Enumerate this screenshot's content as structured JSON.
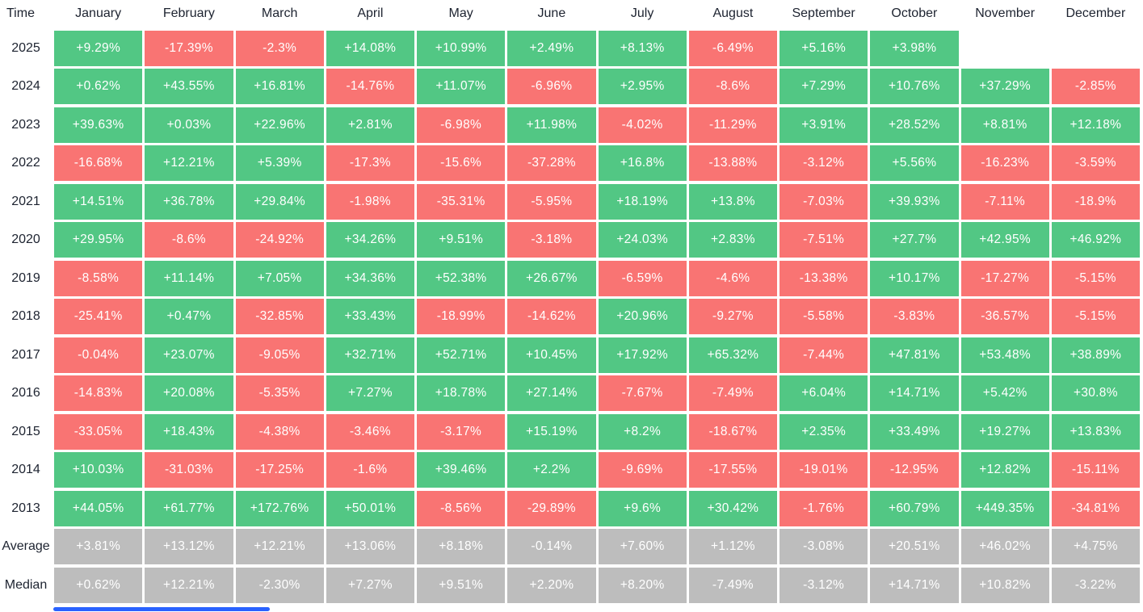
{
  "colors": {
    "positive": "#52c784",
    "negative": "#f97473",
    "summary": "#bdbdbd",
    "cell_text": "#ffffff",
    "label_text": "#1d2330",
    "scrollbar": "#2962ff"
  },
  "chart_data": {
    "type": "heatmap",
    "title": "Monthly performance seasonality table",
    "corner_label": "Time",
    "columns": [
      "January",
      "February",
      "March",
      "April",
      "May",
      "June",
      "July",
      "August",
      "September",
      "October",
      "November",
      "December"
    ],
    "rows": [
      {
        "label": "2025",
        "kind": "year",
        "values": [
          "+9.29%",
          "-17.39%",
          "-2.3%",
          "+14.08%",
          "+10.99%",
          "+2.49%",
          "+8.13%",
          "-6.49%",
          "+5.16%",
          "+3.98%",
          "",
          ""
        ]
      },
      {
        "label": "2024",
        "kind": "year",
        "values": [
          "+0.62%",
          "+43.55%",
          "+16.81%",
          "-14.76%",
          "+11.07%",
          "-6.96%",
          "+2.95%",
          "-8.6%",
          "+7.29%",
          "+10.76%",
          "+37.29%",
          "-2.85%"
        ]
      },
      {
        "label": "2023",
        "kind": "year",
        "values": [
          "+39.63%",
          "+0.03%",
          "+22.96%",
          "+2.81%",
          "-6.98%",
          "+11.98%",
          "-4.02%",
          "-11.29%",
          "+3.91%",
          "+28.52%",
          "+8.81%",
          "+12.18%"
        ]
      },
      {
        "label": "2022",
        "kind": "year",
        "values": [
          "-16.68%",
          "+12.21%",
          "+5.39%",
          "-17.3%",
          "-15.6%",
          "-37.28%",
          "+16.8%",
          "-13.88%",
          "-3.12%",
          "+5.56%",
          "-16.23%",
          "-3.59%"
        ]
      },
      {
        "label": "2021",
        "kind": "year",
        "values": [
          "+14.51%",
          "+36.78%",
          "+29.84%",
          "-1.98%",
          "-35.31%",
          "-5.95%",
          "+18.19%",
          "+13.8%",
          "-7.03%",
          "+39.93%",
          "-7.11%",
          "-18.9%"
        ]
      },
      {
        "label": "2020",
        "kind": "year",
        "values": [
          "+29.95%",
          "-8.6%",
          "-24.92%",
          "+34.26%",
          "+9.51%",
          "-3.18%",
          "+24.03%",
          "+2.83%",
          "-7.51%",
          "+27.7%",
          "+42.95%",
          "+46.92%"
        ]
      },
      {
        "label": "2019",
        "kind": "year",
        "values": [
          "-8.58%",
          "+11.14%",
          "+7.05%",
          "+34.36%",
          "+52.38%",
          "+26.67%",
          "-6.59%",
          "-4.6%",
          "-13.38%",
          "+10.17%",
          "-17.27%",
          "-5.15%"
        ]
      },
      {
        "label": "2018",
        "kind": "year",
        "values": [
          "-25.41%",
          "+0.47%",
          "-32.85%",
          "+33.43%",
          "-18.99%",
          "-14.62%",
          "+20.96%",
          "-9.27%",
          "-5.58%",
          "-3.83%",
          "-36.57%",
          "-5.15%"
        ]
      },
      {
        "label": "2017",
        "kind": "year",
        "values": [
          "-0.04%",
          "+23.07%",
          "-9.05%",
          "+32.71%",
          "+52.71%",
          "+10.45%",
          "+17.92%",
          "+65.32%",
          "-7.44%",
          "+47.81%",
          "+53.48%",
          "+38.89%"
        ]
      },
      {
        "label": "2016",
        "kind": "year",
        "values": [
          "-14.83%",
          "+20.08%",
          "-5.35%",
          "+7.27%",
          "+18.78%",
          "+27.14%",
          "-7.67%",
          "-7.49%",
          "+6.04%",
          "+14.71%",
          "+5.42%",
          "+30.8%"
        ]
      },
      {
        "label": "2015",
        "kind": "year",
        "values": [
          "-33.05%",
          "+18.43%",
          "-4.38%",
          "-3.46%",
          "-3.17%",
          "+15.19%",
          "+8.2%",
          "-18.67%",
          "+2.35%",
          "+33.49%",
          "+19.27%",
          "+13.83%"
        ]
      },
      {
        "label": "2014",
        "kind": "year",
        "values": [
          "+10.03%",
          "-31.03%",
          "-17.25%",
          "-1.6%",
          "+39.46%",
          "+2.2%",
          "-9.69%",
          "-17.55%",
          "-19.01%",
          "-12.95%",
          "+12.82%",
          "-15.11%"
        ]
      },
      {
        "label": "2013",
        "kind": "year",
        "values": [
          "+44.05%",
          "+61.77%",
          "+172.76%",
          "+50.01%",
          "-8.56%",
          "-29.89%",
          "+9.6%",
          "+30.42%",
          "-1.76%",
          "+60.79%",
          "+449.35%",
          "-34.81%"
        ]
      },
      {
        "label": "Average",
        "kind": "summary",
        "values": [
          "+3.81%",
          "+13.12%",
          "+12.21%",
          "+13.06%",
          "+8.18%",
          "-0.14%",
          "+7.60%",
          "+1.12%",
          "-3.08%",
          "+20.51%",
          "+46.02%",
          "+4.75%"
        ]
      },
      {
        "label": "Median",
        "kind": "summary",
        "values": [
          "+0.62%",
          "+12.21%",
          "-2.30%",
          "+7.27%",
          "+9.51%",
          "+2.20%",
          "+8.20%",
          "-7.49%",
          "-3.12%",
          "+14.71%",
          "+10.82%",
          "-3.22%"
        ]
      }
    ]
  }
}
